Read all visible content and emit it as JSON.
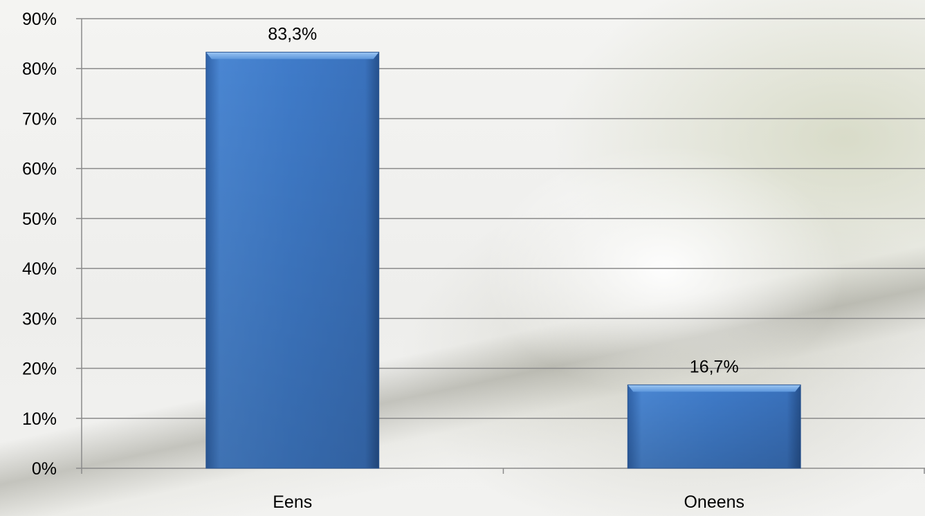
{
  "chart_data": {
    "type": "bar",
    "categories": [
      "Eens",
      "Oneens"
    ],
    "values": [
      83.3,
      16.7
    ],
    "data_labels": [
      "83,3%",
      "16,7%"
    ],
    "title": "",
    "xlabel": "",
    "ylabel": "",
    "ylim": [
      0,
      90
    ],
    "y_ticks": [
      {
        "value": 0,
        "label": "0%"
      },
      {
        "value": 10,
        "label": "10%"
      },
      {
        "value": 20,
        "label": "20%"
      },
      {
        "value": 30,
        "label": "30%"
      },
      {
        "value": 40,
        "label": "40%"
      },
      {
        "value": 50,
        "label": "50%"
      },
      {
        "value": 60,
        "label": "60%"
      },
      {
        "value": 70,
        "label": "70%"
      },
      {
        "value": 80,
        "label": "80%"
      },
      {
        "value": 90,
        "label": "90%"
      }
    ],
    "grid": true,
    "legend": "none",
    "bar_color": "#3d79c8",
    "grid_color": "#8a8a8a"
  }
}
